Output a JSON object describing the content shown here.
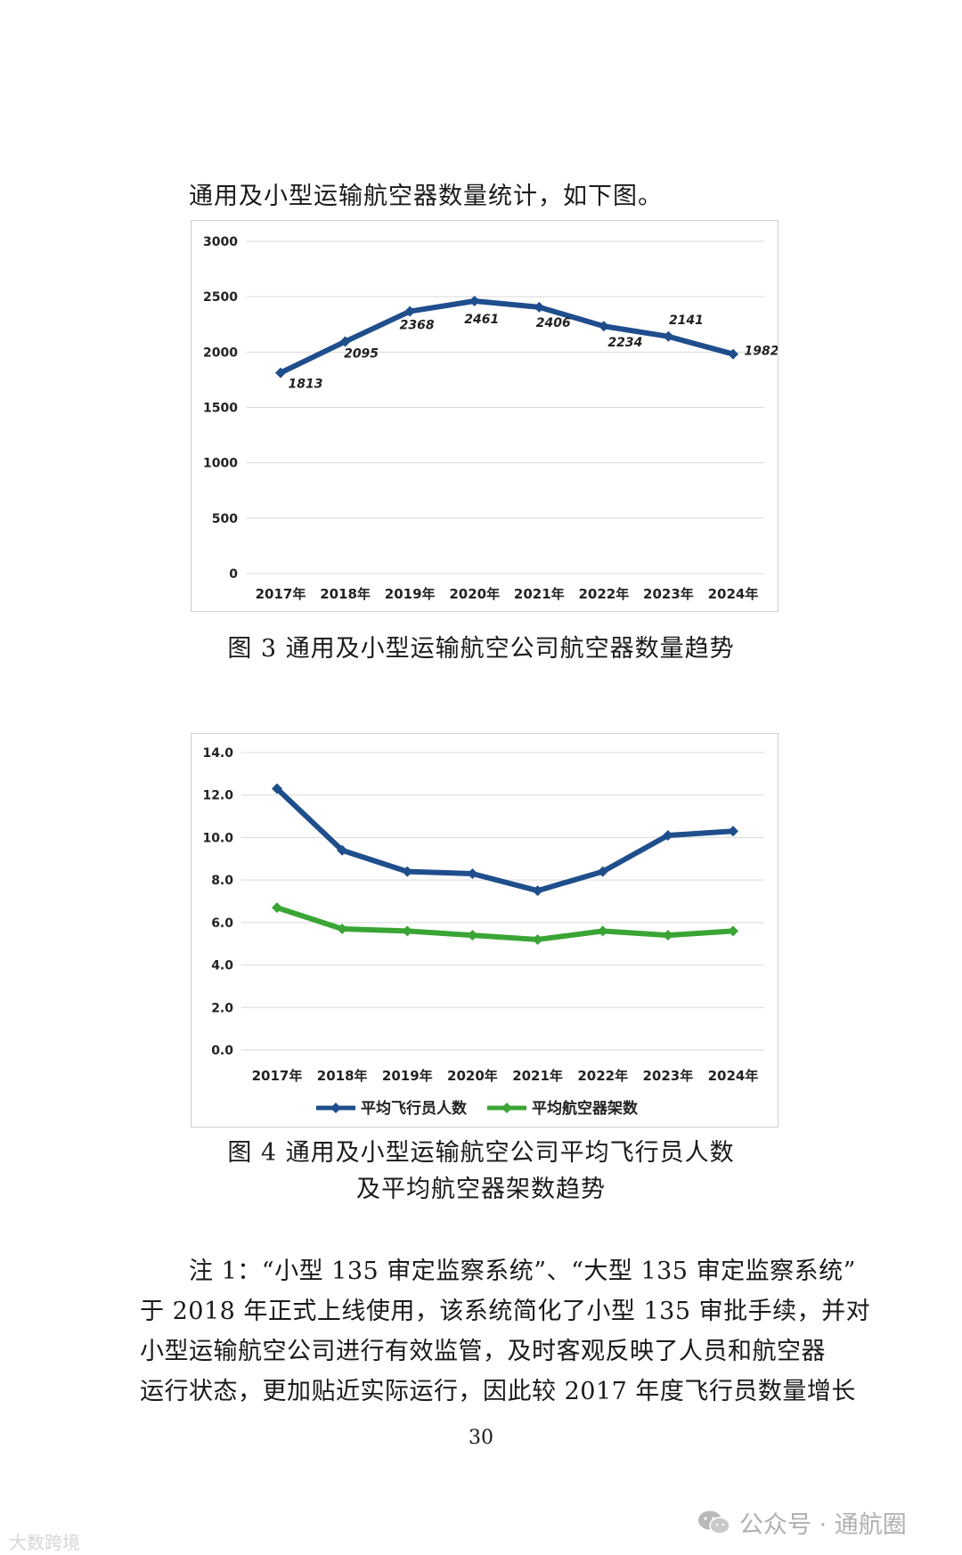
{
  "intro_text": "通用及小型运输航空器数量统计，如下图。",
  "figure3": {
    "caption": "图 3  通用及小型运输航空公司航空器数量趋势"
  },
  "figure4": {
    "caption_line1": "图 4  通用及小型运输航空公司平均飞行员人数",
    "caption_line2": "及平均航空器架数趋势"
  },
  "note": {
    "lines": [
      "注 1：“小型 135 审定监察系统”、“大型 135 审定监察系统”",
      "于 2018 年正式上线使用，该系统简化了小型 135 审批手续，并对",
      "小型运输航空公司进行有效监管，及时客观反映了人员和航空器",
      "运行状态，更加贴近实际运行，因此较 2017 年度飞行员数量增长"
    ]
  },
  "page_number": "30",
  "watermark_left": "大数跨境",
  "watermark_right": "公众号 · 通航圈",
  "colors": {
    "series_blue": "#1f4e8c",
    "series_green": "#3aa535",
    "grid": "#d9d9d9"
  },
  "chart_data": [
    {
      "type": "line",
      "categories": [
        "2017年",
        "2018年",
        "2019年",
        "2020年",
        "2021年",
        "2022年",
        "2023年",
        "2024年"
      ],
      "series": [
        {
          "values": [
            1813,
            2095,
            2368,
            2461,
            2406,
            2234,
            2141,
            1982
          ],
          "color": "#1f4e8c"
        }
      ],
      "data_labels": [
        "1813",
        "2095",
        "2368",
        "2461",
        "2406",
        "2234",
        "2141",
        "1982"
      ],
      "yticks": [
        "0",
        "500",
        "1000",
        "1500",
        "2000",
        "2500",
        "3000"
      ],
      "ylim": [
        0,
        3000
      ],
      "grid": true,
      "marker": "diamond"
    },
    {
      "type": "line",
      "categories": [
        "2017年",
        "2018年",
        "2019年",
        "2020年",
        "2021年",
        "2022年",
        "2023年",
        "2024年"
      ],
      "series": [
        {
          "name": "平均飞行员人数",
          "values": [
            12.3,
            9.4,
            8.4,
            8.3,
            7.5,
            8.4,
            10.1,
            10.3
          ],
          "color": "#1f4e8c"
        },
        {
          "name": "平均航空器架数",
          "values": [
            6.7,
            5.7,
            5.6,
            5.4,
            5.2,
            5.6,
            5.4,
            5.6
          ],
          "color": "#3aa535"
        }
      ],
      "yticks": [
        "0.0",
        "2.0",
        "4.0",
        "6.0",
        "8.0",
        "10.0",
        "12.0",
        "14.0"
      ],
      "ylim": [
        0,
        14
      ],
      "grid": true,
      "legend": "bottom",
      "marker": "diamond"
    }
  ]
}
